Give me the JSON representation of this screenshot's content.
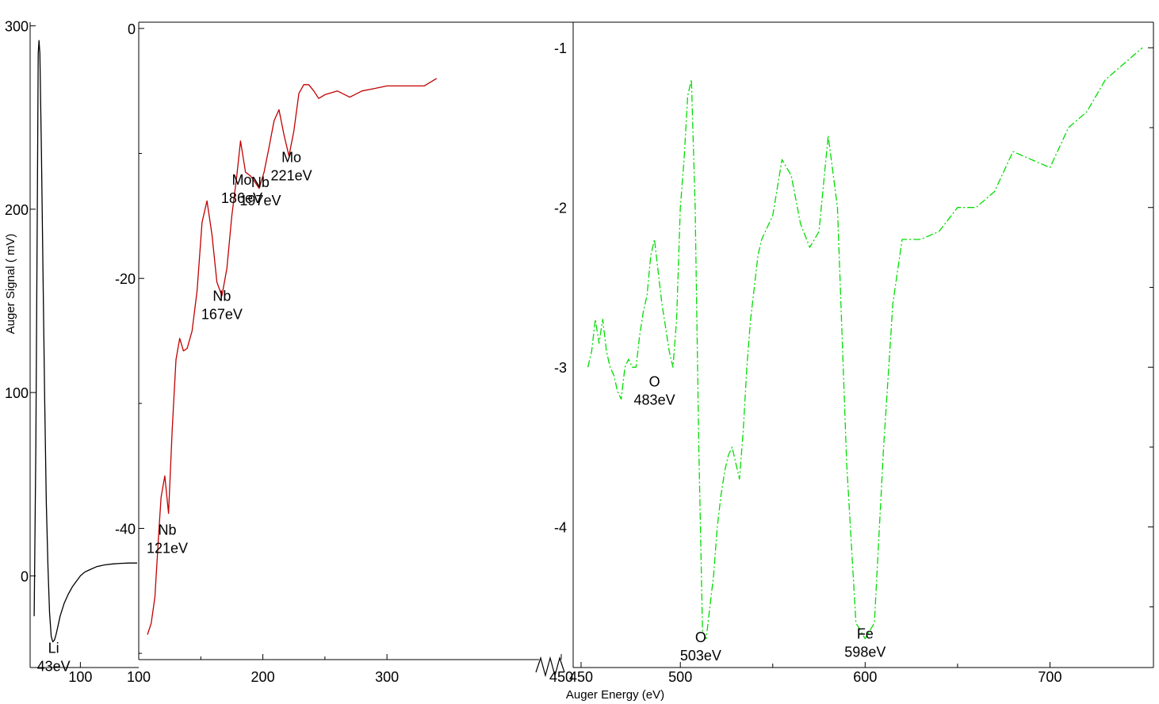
{
  "chart_data": [
    {
      "type": "line",
      "panel": "low-energy",
      "color": "#000000",
      "line_style": "solid",
      "xlim": [
        38,
        172
      ],
      "ylim": [
        -50,
        302
      ],
      "x_ticks": [
        100
      ],
      "x_tick_labels": [
        "100"
      ],
      "y_ticks": [
        0,
        100,
        200,
        300
      ],
      "y_tick_labels": [
        "0",
        "100",
        "200",
        "300"
      ],
      "ylabel": "Auger Signal ( mV)",
      "series": [
        {
          "x": [
            43,
            45,
            47,
            48,
            49,
            50,
            52,
            54,
            56,
            58,
            60,
            62,
            64,
            66,
            68,
            70,
            72,
            75,
            80,
            85,
            90,
            95,
            100,
            105,
            110,
            120,
            130,
            140,
            150,
            160,
            170
          ],
          "y": [
            -22,
            70,
            210,
            285,
            292,
            285,
            230,
            160,
            95,
            40,
            5,
            -20,
            -33,
            -36,
            -35,
            -32,
            -28,
            -22,
            -15,
            -10,
            -6,
            -3,
            0,
            2,
            3,
            5,
            6,
            6.5,
            6.8,
            7,
            7
          ]
        }
      ],
      "annotations": [
        {
          "line1": "Li",
          "line2": "43eV",
          "x": 67,
          "y": -42
        }
      ]
    },
    {
      "type": "line",
      "panel": "mid-energy",
      "color": "#c00000",
      "line_style": "solid",
      "xlim": [
        100,
        450
      ],
      "ylim": [
        -50.5,
        0.5
      ],
      "x_ticks": [
        100,
        200,
        300,
        450
      ],
      "x_tick_labels": [
        "100",
        "200",
        "300",
        "450"
      ],
      "y_ticks": [
        0,
        -20,
        -40
      ],
      "y_tick_labels": [
        "0",
        "-20",
        "-40"
      ],
      "series": [
        {
          "x": [
            107,
            110,
            113,
            116,
            118,
            121,
            124,
            127,
            130,
            133,
            136,
            139,
            143,
            147,
            151,
            155,
            159,
            163,
            167,
            171,
            175,
            179,
            182,
            186,
            190,
            193,
            197,
            201,
            205,
            209,
            213,
            217,
            221,
            225,
            229,
            233,
            237,
            241,
            245,
            250,
            260,
            270,
            280,
            290,
            300,
            310,
            320,
            330,
            340
          ],
          "y": [
            -48.5,
            -47.6,
            -45.5,
            -40.5,
            -37.5,
            -35.8,
            -38.8,
            -32,
            -26.5,
            -24.8,
            -25.8,
            -25.6,
            -24.2,
            -21,
            -15.5,
            -13.8,
            -16.5,
            -20.3,
            -21.4,
            -19.2,
            -15,
            -11.8,
            -9,
            -11.5,
            -11.8,
            -12.2,
            -12.8,
            -11.5,
            -9.5,
            -7.4,
            -6.5,
            -8.5,
            -10.2,
            -8.2,
            -5.2,
            -4.5,
            -4.5,
            -5,
            -5.6,
            -5.3,
            -5,
            -5.5,
            -5,
            -4.8,
            -4.6,
            -4.6,
            -4.6,
            -4.6,
            -4
          ]
        }
      ],
      "annotations": [
        {
          "line1": "Nb",
          "line2": "121eV",
          "x": 123,
          "y": -40.5
        },
        {
          "line1": "Nb",
          "line2": "167eV",
          "x": 167,
          "y": -21.8
        },
        {
          "line1": "Mo",
          "line2": "186eV",
          "x": 183,
          "y": -12.5
        },
        {
          "line1": "Nb",
          "line2": "197eV",
          "x": 198,
          "y": -12.7
        },
        {
          "line1": "Mo",
          "line2": "221eV",
          "x": 223,
          "y": -10.7
        }
      ]
    },
    {
      "type": "line",
      "panel": "high-energy",
      "color": "#00dd00",
      "line_style": "dashed",
      "xlim": [
        442,
        756
      ],
      "ylim": [
        -4.88,
        -0.84
      ],
      "x_ticks": [
        450,
        500,
        600,
        700
      ],
      "x_tick_labels": [
        "450",
        "500",
        "600",
        "700"
      ],
      "y_ticks": [
        -1,
        -2,
        -3,
        -4
      ],
      "y_tick_labels": [
        "-1",
        "-2",
        "-3",
        "-4"
      ],
      "xlabel": "Auger Energy (eV)",
      "series": [
        {
          "x": [
            450,
            452,
            454,
            456,
            458,
            460,
            462,
            464,
            466,
            468,
            470,
            472,
            474,
            476,
            478,
            480,
            482,
            484,
            486,
            488,
            490,
            492,
            494,
            496,
            498,
            500,
            502,
            504,
            506,
            508,
            510,
            512,
            514,
            516,
            518,
            520,
            522,
            524,
            526,
            528,
            530,
            532,
            534,
            536,
            538,
            540,
            542,
            544,
            546,
            548,
            550,
            555,
            560,
            565,
            570,
            575,
            580,
            585,
            590,
            595,
            600,
            605,
            610,
            615,
            620,
            625,
            630,
            640,
            650,
            660,
            670,
            680,
            690,
            700,
            710,
            720,
            730,
            740,
            750
          ],
          "y": [
            -3.0,
            -2.9,
            -2.7,
            -2.85,
            -2.7,
            -2.9,
            -3.0,
            -3.05,
            -3.15,
            -3.2,
            -3.0,
            -2.95,
            -3.0,
            -3.0,
            -2.8,
            -2.65,
            -2.55,
            -2.3,
            -2.2,
            -2.4,
            -2.6,
            -2.75,
            -2.9,
            -3.0,
            -2.7,
            -2.0,
            -1.7,
            -1.3,
            -1.2,
            -2.0,
            -3.5,
            -4.65,
            -4.7,
            -4.5,
            -4.3,
            -4.0,
            -3.8,
            -3.65,
            -3.55,
            -3.5,
            -3.6,
            -3.7,
            -3.4,
            -3.0,
            -2.7,
            -2.5,
            -2.3,
            -2.2,
            -2.15,
            -2.1,
            -2.05,
            -1.7,
            -1.8,
            -2.1,
            -2.25,
            -2.15,
            -1.55,
            -2.0,
            -3.6,
            -4.6,
            -4.7,
            -4.6,
            -3.5,
            -2.6,
            -2.2,
            -2.2,
            -2.2,
            -2.15,
            -2.0,
            -2.0,
            -1.9,
            -1.65,
            -1.7,
            -1.75,
            -1.5,
            -1.4,
            -1.2,
            -1.1,
            -1.0
          ]
        }
      ],
      "annotations": [
        {
          "line1": "O",
          "line2": "483eV",
          "x": 486,
          "y": -3.12
        },
        {
          "line1": "O",
          "line2": "503eV",
          "x": 511,
          "y": -4.72
        },
        {
          "line1": "Fe",
          "line2": "598eV",
          "x": 600,
          "y": -4.7
        }
      ]
    }
  ]
}
